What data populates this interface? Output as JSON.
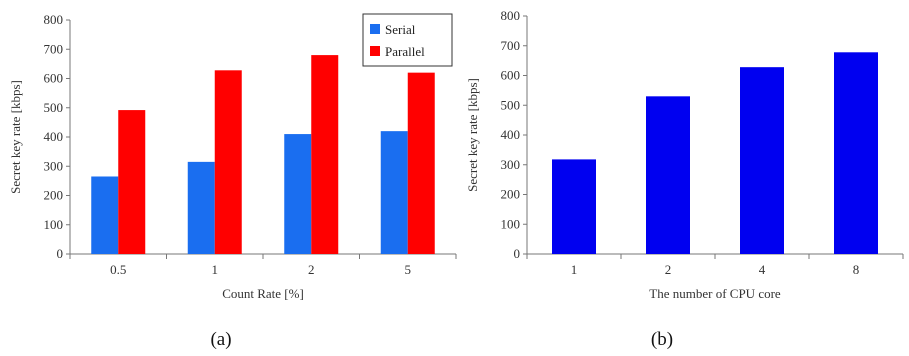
{
  "colors": {
    "serial": "#1a6ef0",
    "parallel": "#ff0000",
    "single": "#0000f0",
    "axis": "#777777"
  },
  "chart_data": [
    {
      "type": "bar",
      "caption": "(a)",
      "xlabel": "Count Rate [%]",
      "ylabel": "Secret key rate [kbps]",
      "ylim": [
        0,
        800
      ],
      "yticks": [
        0,
        100,
        200,
        300,
        400,
        500,
        600,
        700,
        800
      ],
      "categories": [
        "0.5",
        "1",
        "2",
        "5"
      ],
      "legend_position": "top-right",
      "series": [
        {
          "name": "Serial",
          "values": [
            265,
            315,
            410,
            420
          ]
        },
        {
          "name": "Parallel",
          "values": [
            492,
            628,
            680,
            620
          ]
        }
      ]
    },
    {
      "type": "bar",
      "caption": "(b)",
      "xlabel": "The number of CPU core",
      "ylabel": "Secret key rate [kbps]",
      "ylim": [
        0,
        800
      ],
      "yticks": [
        0,
        100,
        200,
        300,
        400,
        500,
        600,
        700,
        800
      ],
      "categories": [
        "1",
        "2",
        "4",
        "8"
      ],
      "series": [
        {
          "values": [
            318,
            530,
            628,
            678
          ]
        }
      ]
    }
  ]
}
